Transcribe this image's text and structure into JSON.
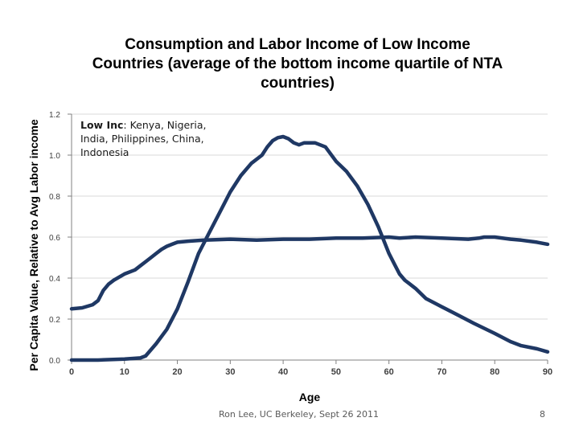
{
  "title_lines": [
    "Consumption and Labor Income of Low Income",
    "Countries (average of the bottom income quartile of NTA",
    "countries)"
  ],
  "footer": {
    "credit": "Ron Lee, UC Berkeley, Sept 26 2011",
    "page_number": "8"
  },
  "annotation": {
    "label": "Low Inc",
    "countries": ": Kenya, Nigeria, India, Philippines, China, Indonesia"
  },
  "colors": {
    "series": "#1f3864",
    "grid": "#d9d9d9",
    "axis": "#808080"
  },
  "chart_data": {
    "type": "line",
    "title": "Consumption and Labor Income of Low Income Countries (average of the bottom income quartile of NTA countries)",
    "xlabel": "Age",
    "ylabel": "Per Capita Value, Relative to Avg Labor income",
    "xlim": [
      0,
      90
    ],
    "ylim": [
      0,
      1.2
    ],
    "xticks": [
      "0",
      "10",
      "20",
      "30",
      "40",
      "50",
      "60",
      "70",
      "80",
      "90"
    ],
    "yticks": [
      "0.0",
      "0.2",
      "0.4",
      "0.6",
      "0.8",
      "1.0",
      "1.2"
    ],
    "grid": "horizontal",
    "series": [
      {
        "x": [
          0,
          2,
          4,
          5,
          6,
          7,
          8,
          10,
          12,
          13,
          14,
          15,
          16,
          17,
          18,
          19,
          20,
          22,
          25,
          30,
          35,
          40,
          45,
          50,
          55,
          60,
          62,
          65,
          70,
          75,
          77,
          78,
          80,
          83,
          85,
          88,
          90
        ],
        "values": [
          0.25,
          0.255,
          0.27,
          0.29,
          0.34,
          0.37,
          0.39,
          0.42,
          0.44,
          0.46,
          0.48,
          0.5,
          0.52,
          0.54,
          0.555,
          0.565,
          0.575,
          0.58,
          0.585,
          0.59,
          0.585,
          0.59,
          0.59,
          0.595,
          0.595,
          0.6,
          0.595,
          0.6,
          0.595,
          0.59,
          0.595,
          0.6,
          0.6,
          0.59,
          0.585,
          0.575,
          0.565
        ]
      },
      {
        "x": [
          0,
          5,
          10,
          13,
          14,
          16,
          18,
          20,
          22,
          24,
          26,
          28,
          30,
          32,
          34,
          36,
          37,
          38,
          39,
          40,
          41,
          42,
          43,
          44,
          46,
          48,
          50,
          52,
          54,
          56,
          58,
          60,
          61,
          62,
          63,
          65,
          67,
          70,
          73,
          76,
          80,
          83,
          85,
          88,
          90
        ],
        "values": [
          0.0,
          0.0,
          0.005,
          0.01,
          0.02,
          0.08,
          0.15,
          0.25,
          0.38,
          0.52,
          0.62,
          0.72,
          0.82,
          0.9,
          0.96,
          1.0,
          1.04,
          1.07,
          1.085,
          1.09,
          1.08,
          1.06,
          1.05,
          1.06,
          1.06,
          1.04,
          0.97,
          0.92,
          0.85,
          0.76,
          0.65,
          0.52,
          0.47,
          0.42,
          0.39,
          0.35,
          0.3,
          0.26,
          0.22,
          0.18,
          0.13,
          0.09,
          0.07,
          0.055,
          0.04
        ]
      }
    ]
  }
}
